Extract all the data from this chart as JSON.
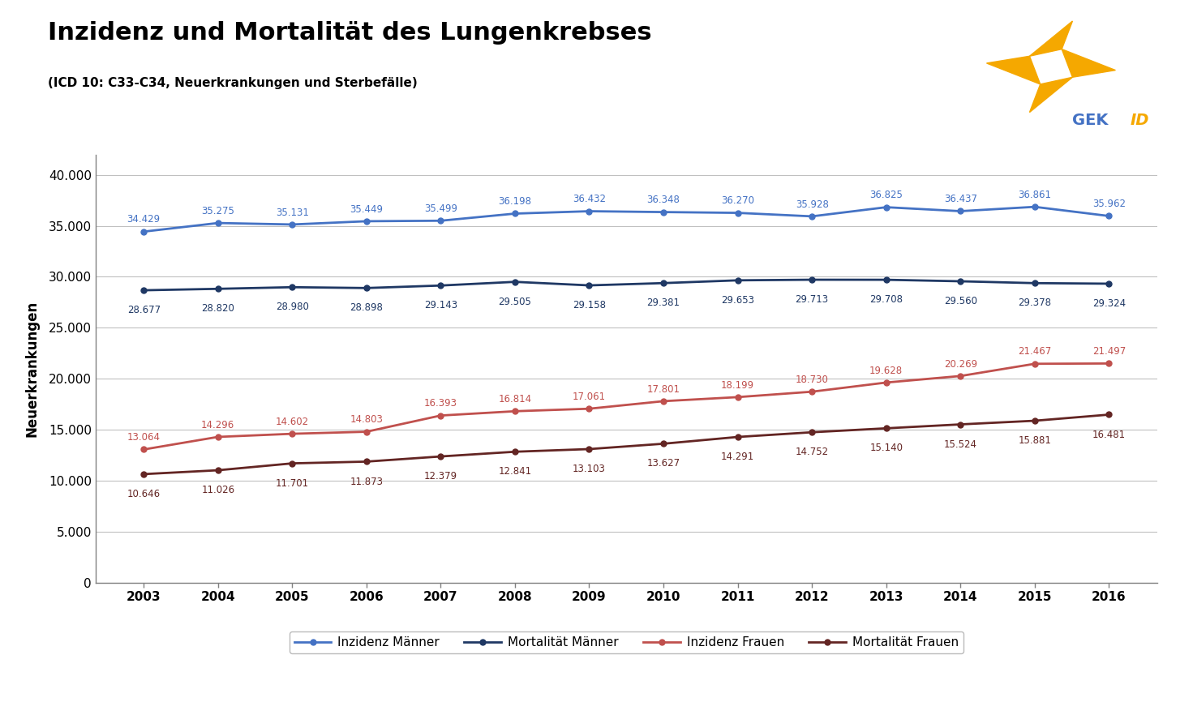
{
  "title": "Inzidenz und Mortalität des Lungenkrebses",
  "subtitle": "(ICD 10: C33-C34, Neuerkrankungen und Sterbefälle)",
  "ylabel": "Neuerkrankungen",
  "years": [
    2003,
    2004,
    2005,
    2006,
    2007,
    2008,
    2009,
    2010,
    2011,
    2012,
    2013,
    2014,
    2015,
    2016
  ],
  "inzidenz_maenner": [
    34429,
    35275,
    35131,
    35449,
    35499,
    36198,
    36432,
    36348,
    36270,
    35928,
    36825,
    36437,
    36861,
    35962
  ],
  "mortalitaet_maenner": [
    28677,
    28820,
    28980,
    28898,
    29143,
    29505,
    29158,
    29381,
    29653,
    29713,
    29708,
    29560,
    29378,
    29324
  ],
  "inzidenz_frauen": [
    13064,
    14296,
    14602,
    14803,
    16393,
    16814,
    17061,
    17801,
    18199,
    18730,
    19628,
    20269,
    21467,
    21497
  ],
  "mortalitaet_frauen": [
    10646,
    11026,
    11701,
    11873,
    12379,
    12841,
    13103,
    13627,
    14291,
    14752,
    15140,
    15524,
    15881,
    16481
  ],
  "color_inzidenz_maenner": "#4472C4",
  "color_mortalitaet_maenner": "#1F3864",
  "color_inzidenz_frauen": "#C0504D",
  "color_mortalitaet_frauen": "#632523",
  "ylim_max": 42000,
  "ylim_min": 0,
  "yticks": [
    0,
    5000,
    10000,
    15000,
    20000,
    25000,
    30000,
    35000,
    40000
  ],
  "background_color": "#FFFFFF",
  "plot_bg_color": "#FFFFFF",
  "border_color": "#808080",
  "grid_color": "#C0C0C0",
  "label_fontsize": 8.5,
  "tick_fontsize": 11,
  "ylabel_fontsize": 12,
  "title_fontsize": 22,
  "subtitle_fontsize": 11,
  "legend_fontsize": 11,
  "linewidth": 2.0,
  "markersize": 5
}
